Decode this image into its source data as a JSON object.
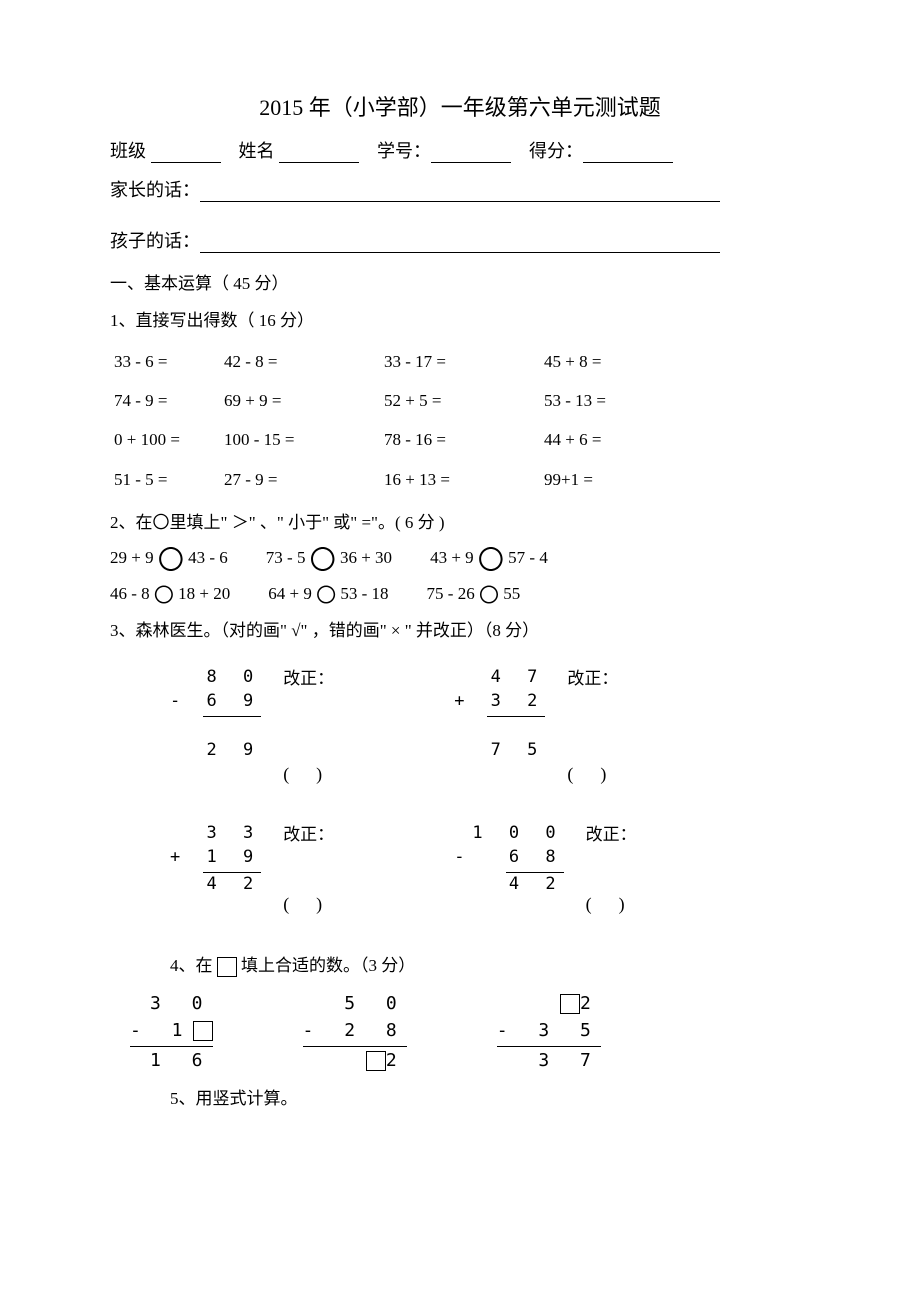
{
  "title": "2015 年（小学部）一年级第六单元测试题",
  "labels": {
    "class": "班级",
    "name": "姓名",
    "sid": "学号：",
    "score": "得分：",
    "parent_msg": "家长的话：",
    "child_msg": "孩子的话："
  },
  "section1": {
    "head": "一、基本运算（ 45 分）",
    "q1_head": "1、直接写出得数（ 16 分）",
    "grid": [
      [
        "33 - 6 =",
        "42",
        "- 8 =",
        "33",
        "- 17 =",
        "45",
        "+ 8 ="
      ],
      [
        "74 - 9 =",
        "69",
        "+ 9 =",
        "52",
        "+ 5 =",
        "53",
        "- 13 ="
      ],
      [
        "0 + 100 =",
        "100",
        "- 15 =",
        "78",
        "- 16 =",
        "44",
        "+ 6 ="
      ],
      [
        "51 - 5 =",
        "27",
        "- 9 =",
        "16",
        "+ 13 =",
        "99+1",
        "="
      ]
    ],
    "q2_head": "2、在〇里填上\" ＞\" 、\" 小于\" 或\" =\"。( 6 分 )",
    "cmp_rows": [
      [
        {
          "l": "29 + 9",
          "r": "43 - 6",
          "size": "big"
        },
        {
          "l": "73 - 5",
          "r": "36 + 30",
          "size": "big"
        },
        {
          "l": "43 + 9",
          "r": "57 - 4",
          "size": "big"
        }
      ],
      [
        {
          "l": "46 - 8",
          "r": "18 + 20",
          "size": "small"
        },
        {
          "l": "64 + 9",
          "r": "53 - 18",
          "size": "small"
        },
        {
          "l": "75 - 26",
          "r": "55",
          "size": "small"
        }
      ]
    ],
    "q3_head": "3、森林医生。（对的画\" √\" ，错的画\" × \" 并改正）（8 分）",
    "doctor": [
      {
        "top": "8 0",
        "mid": "- 6 9",
        "res": "2 9",
        "res_paren": "( 　 )",
        "corr_label": "改正：",
        "bar_pos": "above_gap",
        "gap": true
      },
      {
        "top": "4 7",
        "mid": "+ 3 2",
        "res": "7 5",
        "res_paren": "( 　 )",
        "corr_label": "改正：",
        "bar_pos": "above_gap",
        "gap": true
      },
      {
        "top": "3 3",
        "mid": "+ 1 9",
        "res": "4 2",
        "res_paren": "( 　 )",
        "corr_label": "改正：",
        "bar_pos": "above_res",
        "gap": false
      },
      {
        "top": "1 0 0",
        "mid": "-  6 8",
        "res": "4 2",
        "res_paren": "( 　 )",
        "corr_label": "改正：",
        "bar_pos": "above_res",
        "gap": false
      }
    ],
    "q4_head": "4、在 □ 填上合适的数。（3 分）",
    "q4": [
      {
        "l1": "3 0",
        "l2_pre": "- 1 ",
        "l2_box": true,
        "l2_post": "",
        "l3_pre": "",
        "l3_box": false,
        "l3_post": "1 6"
      },
      {
        "l1": "5 0",
        "l2_pre": "-  2 8",
        "l2_box": false,
        "l2_post": "",
        "l3_pre": "",
        "l3_box": true,
        "l3_post": " 2"
      },
      {
        "l1_box": true,
        "l1": " 2",
        "l2_pre": "-  3  5",
        "l2_box": false,
        "l2_post": "",
        "l3_pre": "",
        "l3_box": false,
        "l3_post": "3  7"
      }
    ],
    "q5_head": "5、用竖式计算。"
  },
  "style": {
    "page_bg": "#ffffff",
    "text_color": "#000000",
    "base_font_size": 18,
    "title_font_size": 22
  }
}
